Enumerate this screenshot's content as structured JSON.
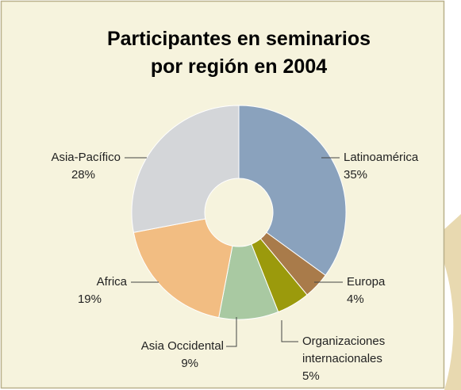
{
  "chart_data": {
    "type": "donut",
    "title": [
      "Participantes en seminarios",
      "por región en 2004"
    ],
    "categories": [
      "Latinoamérica",
      "Europa",
      "Organizaciones internacionales",
      "Asia Occidental",
      "Africa",
      "Asia-Pacífico"
    ],
    "values": [
      35,
      4,
      5,
      9,
      19,
      28
    ],
    "value_labels": [
      "35%",
      "4%",
      "5%",
      "9%",
      "19%",
      "28%"
    ],
    "colors": [
      "#8aa2bd",
      "#a97b4a",
      "#9b9a0c",
      "#a9c9a2",
      "#f2bd82",
      "#d4d6d9"
    ]
  }
}
